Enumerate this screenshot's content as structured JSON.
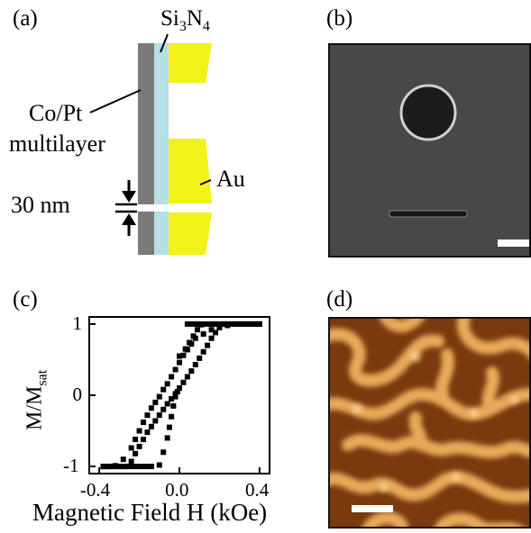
{
  "panels": {
    "a": {
      "label": "(a)",
      "si3n4_main": "Si",
      "si3n4_sub1": "3",
      "si3n4_mid": "N",
      "si3n4_sub2": "4",
      "copt_line1": "Co/Pt",
      "copt_line2": "multilayer",
      "gap_label": "30 nm",
      "au_label": "Au",
      "colors": {
        "copt": "#7a7a7a",
        "si3n4": "#b4e0e6",
        "au": "#f0f218"
      }
    },
    "b": {
      "label": "(b)"
    },
    "c": {
      "label": "(c)",
      "ylabel_main": "M/M",
      "ylabel_sub": "sat",
      "xlabel": "Magnetic Field H (kOe)",
      "yticks": [
        "1",
        "0",
        "-1"
      ],
      "xticks": [
        "-0.4",
        "0.0",
        "0.4"
      ]
    },
    "d": {
      "label": "(d)"
    }
  },
  "chart_data": {
    "type": "scatter",
    "title": "",
    "xlabel": "Magnetic Field H (kOe)",
    "ylabel": "M/Msat",
    "xlim": [
      -0.45,
      0.45
    ],
    "ylim": [
      -1.1,
      1.1
    ],
    "xticks": [
      -0.4,
      0.0,
      0.4
    ],
    "yticks": [
      -1,
      0,
      1
    ],
    "series": [
      {
        "x": [
          -0.38,
          -0.34,
          -0.3,
          -0.27,
          -0.24,
          -0.22,
          -0.2,
          -0.18,
          -0.16,
          -0.14,
          -0.12,
          -0.1,
          -0.08,
          -0.06,
          -0.04,
          -0.02,
          0.0,
          0.02,
          0.04,
          0.06,
          0.08,
          0.1,
          0.12,
          0.14,
          0.16,
          0.18,
          0.2,
          0.22,
          0.24,
          0.26,
          0.3,
          0.34,
          0.38,
          0.4
        ],
        "y": [
          -1.0,
          -1.0,
          -1.0,
          -1.0,
          -0.93,
          -0.82,
          -0.72,
          -0.62,
          -0.52,
          -0.44,
          -0.36,
          -0.28,
          -0.2,
          -0.12,
          -0.05,
          0.02,
          0.1,
          0.18,
          0.26,
          0.34,
          0.43,
          0.52,
          0.61,
          0.7,
          0.8,
          0.88,
          0.95,
          1.0,
          1.0,
          1.0,
          1.0,
          1.0,
          1.0,
          1.0
        ]
      },
      {
        "x": [
          0.4,
          0.36,
          0.32,
          0.28,
          0.24,
          0.2,
          0.16,
          0.12,
          0.08,
          0.06,
          0.04,
          0.02,
          0.0,
          -0.02,
          -0.04,
          -0.06,
          -0.08,
          -0.1,
          -0.12,
          -0.14,
          -0.16,
          -0.18,
          -0.2,
          -0.22,
          -0.24,
          -0.28,
          -0.32,
          -0.36,
          -0.38
        ],
        "y": [
          1.0,
          1.0,
          1.0,
          1.0,
          0.98,
          0.96,
          0.92,
          0.86,
          0.8,
          0.72,
          0.64,
          0.56,
          0.46,
          0.36,
          0.26,
          0.16,
          0.08,
          -0.02,
          -0.1,
          -0.18,
          -0.28,
          -0.38,
          -0.5,
          -0.62,
          -0.74,
          -0.9,
          -0.99,
          -1.0,
          -1.0
        ]
      },
      {
        "x": [
          -0.1,
          -0.08,
          -0.06,
          -0.05,
          -0.04,
          -0.03,
          -0.02,
          -0.01,
          0.0
        ],
        "y": [
          -0.98,
          -0.8,
          -0.6,
          -0.45,
          -0.3,
          -0.15,
          -0.02,
          0.05,
          0.1
        ]
      },
      {
        "x": [
          0.0,
          0.03,
          0.05,
          0.07,
          0.09,
          0.11
        ],
        "y": [
          0.55,
          0.65,
          0.74,
          0.83,
          0.92,
          0.99
        ]
      }
    ]
  }
}
